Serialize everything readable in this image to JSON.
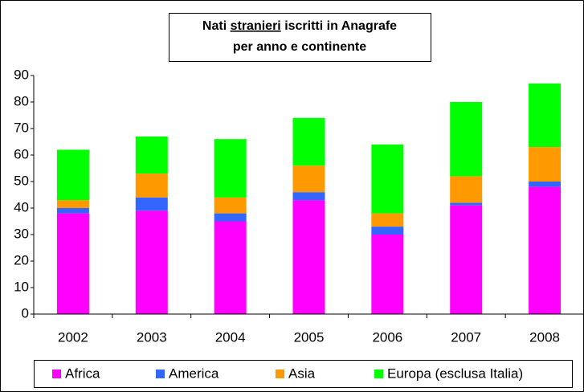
{
  "chart_data": {
    "type": "stacked-bar",
    "title": [
      "Nati",
      "stranieri",
      "iscritti in Anagrafe"
    ],
    "subtitle": "per anno e continente",
    "categories": [
      "2002",
      "2003",
      "2004",
      "2005",
      "2006",
      "2007",
      "2008"
    ],
    "series": [
      {
        "name": "Africa",
        "color": "#ff00ff",
        "values": [
          38,
          39,
          35,
          43,
          30,
          41,
          48
        ]
      },
      {
        "name": "America",
        "color": "#3366ff",
        "values": [
          2,
          5,
          3,
          3,
          3,
          1,
          2
        ]
      },
      {
        "name": "Asia",
        "color": "#ff9900",
        "values": [
          3,
          9,
          6,
          10,
          5,
          10,
          13
        ]
      },
      {
        "name": "Europa (esclusa Italia)",
        "color": "#00ff00",
        "values": [
          19,
          14,
          22,
          18,
          26,
          28,
          24
        ]
      }
    ],
    "ylim": [
      0,
      90
    ],
    "yticks": [
      0,
      10,
      20,
      30,
      40,
      50,
      60,
      70,
      80,
      90
    ],
    "grid": false,
    "legend": "bottom"
  }
}
